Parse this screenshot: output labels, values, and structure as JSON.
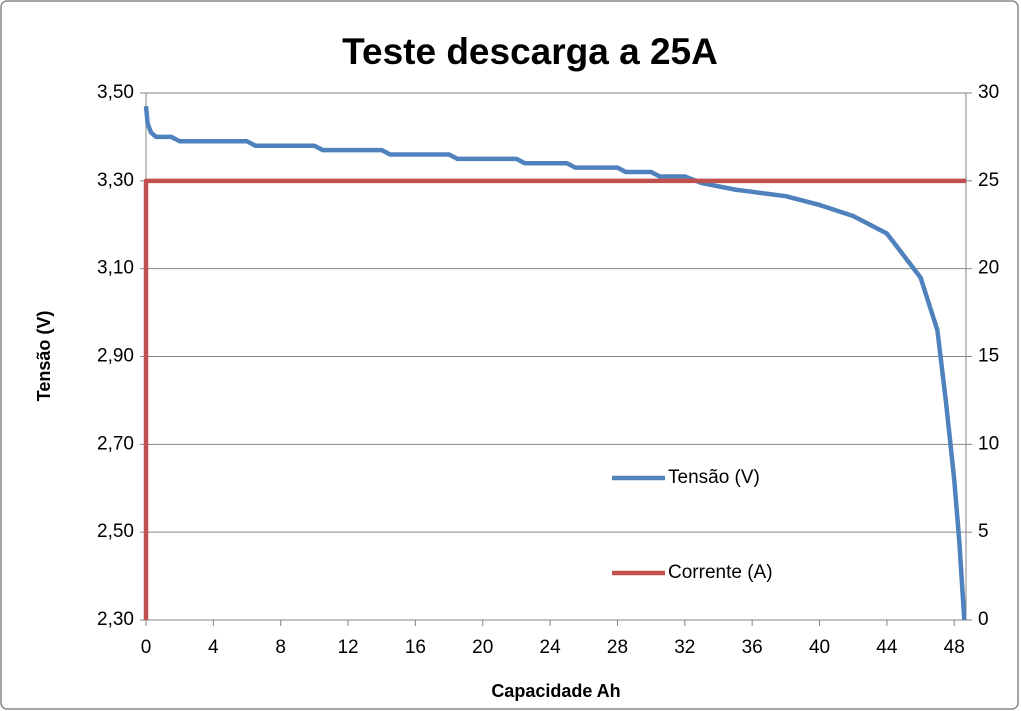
{
  "chart_data": {
    "type": "line",
    "title": "Teste descarga a 25A",
    "xlabel": "Capacidade Ah",
    "ylabel": "Tensão (V)",
    "xlim": [
      0,
      48.7
    ],
    "xticks": [
      0,
      4,
      8,
      12,
      16,
      20,
      24,
      28,
      32,
      36,
      40,
      44,
      48
    ],
    "ylim": [
      2.3,
      3.5
    ],
    "yticks": [
      {
        "value": 2.3,
        "label": "2,30"
      },
      {
        "value": 2.5,
        "label": "2,50"
      },
      {
        "value": 2.7,
        "label": "2,70"
      },
      {
        "value": 2.9,
        "label": "2,90"
      },
      {
        "value": 3.1,
        "label": "3,10"
      },
      {
        "value": 3.3,
        "label": "3,30"
      },
      {
        "value": 3.5,
        "label": "3,50"
      }
    ],
    "y2lim": [
      0,
      30
    ],
    "y2ticks": [
      0,
      5,
      10,
      15,
      20,
      25,
      30
    ],
    "grid": true,
    "legend": "right",
    "series": [
      {
        "name": "Tensão (V)",
        "color": "#4f81bd",
        "x": [
          0,
          0.1,
          0.3,
          0.6,
          1.5,
          2,
          6,
          6.5,
          10,
          10.5,
          14,
          14.5,
          18,
          18.5,
          22,
          22.5,
          25,
          25.5,
          28,
          28.5,
          30,
          30.5,
          32,
          33,
          35,
          36,
          38,
          40,
          42,
          43,
          44,
          45,
          46,
          47,
          47.5,
          48,
          48.3,
          48.6
        ],
        "values": [
          3.47,
          3.43,
          3.41,
          3.4,
          3.4,
          3.39,
          3.39,
          3.38,
          3.38,
          3.37,
          3.37,
          3.36,
          3.36,
          3.35,
          3.35,
          3.34,
          3.34,
          3.33,
          3.33,
          3.32,
          3.32,
          3.31,
          3.31,
          3.295,
          3.28,
          3.275,
          3.265,
          3.245,
          3.22,
          3.2,
          3.18,
          3.13,
          3.08,
          2.96,
          2.8,
          2.62,
          2.48,
          2.3
        ]
      },
      {
        "name": "Corrente (A)",
        "color": "#c0504d",
        "axis": "y2",
        "x": [
          0,
          0,
          48.7
        ],
        "values": [
          0,
          25,
          25
        ]
      }
    ]
  }
}
